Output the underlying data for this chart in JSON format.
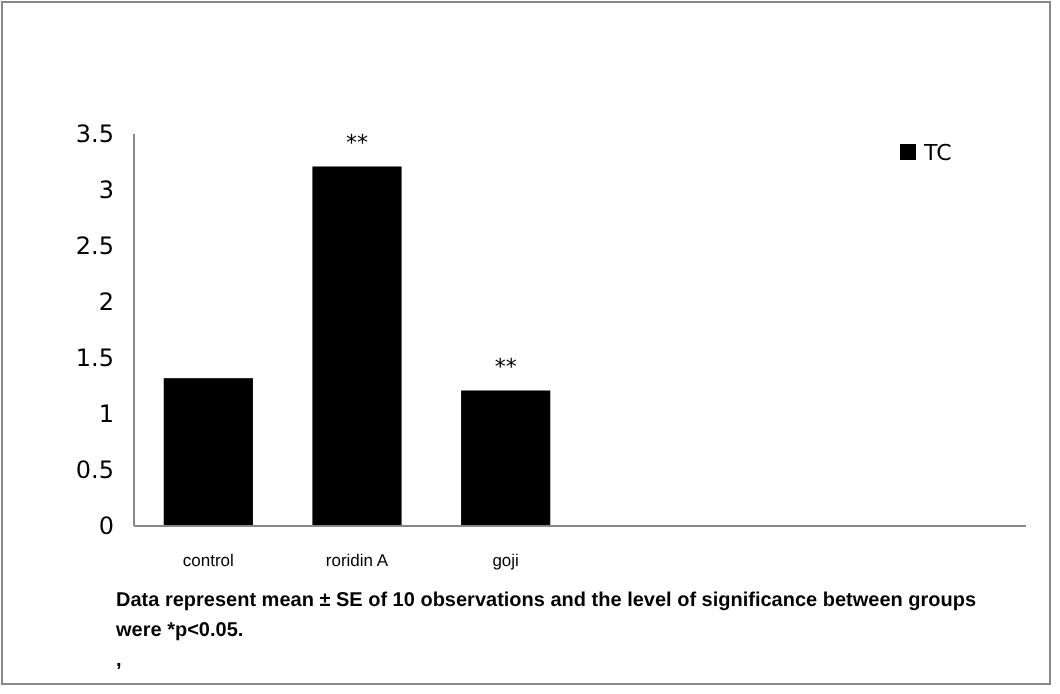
{
  "chart_data": {
    "type": "bar",
    "categories": [
      "control",
      "roridin A",
      "goji",
      null,
      null,
      null
    ],
    "series": [
      {
        "name": "TC",
        "color": "#000000",
        "values": [
          1.32,
          3.21,
          1.21,
          null,
          null,
          null
        ]
      }
    ],
    "ylim": [
      0,
      3.5
    ],
    "yticks": [
      0,
      0.5,
      1,
      1.5,
      2,
      2.5,
      3,
      3.5
    ],
    "grid": false,
    "legend": "top right",
    "annotations": [
      {
        "text": "**",
        "x": "roridin A",
        "y": 3.21
      },
      {
        "text": "**",
        "x": "goji",
        "y": 1.21
      },
      "Data represent  mean ± SE of 10 observations and the level of significance between groups were *p<0.05.",
      ","
    ]
  }
}
